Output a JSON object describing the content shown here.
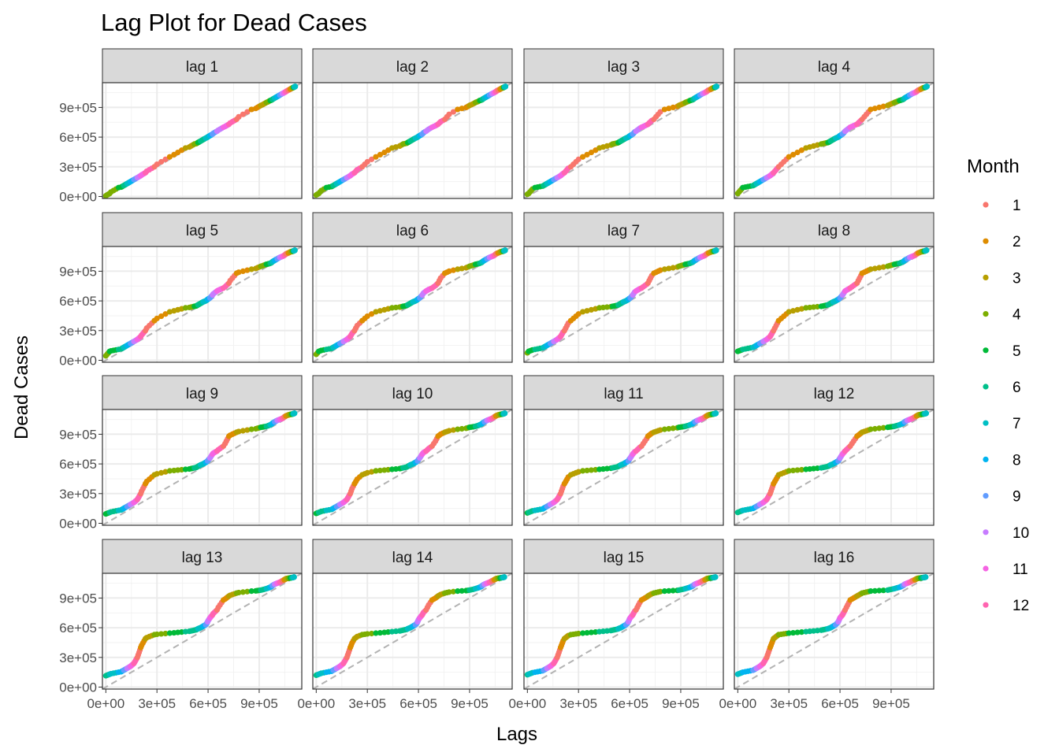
{
  "chart_data": {
    "type": "scatter",
    "title": "Lag Plot for Dead Cases",
    "xlabel": "Lags",
    "ylabel": "Dead Cases",
    "xlim": [
      -20000,
      1150000
    ],
    "ylim": [
      -20000,
      1150000
    ],
    "x_ticks": [
      0,
      300000,
      600000,
      900000
    ],
    "x_tick_labels": [
      "0e+00",
      "3e+05",
      "6e+05",
      "9e+05"
    ],
    "y_ticks": [
      0,
      300000,
      600000,
      900000
    ],
    "y_tick_labels": [
      "0e+00",
      "3e+05",
      "6e+05",
      "9e+05"
    ],
    "reference_line": "y = x (dashed grey)",
    "grid": true,
    "facets": [
      "lag 1",
      "lag 2",
      "lag 3",
      "lag 4",
      "lag 5",
      "lag 6",
      "lag 7",
      "lag 8",
      "lag 9",
      "lag 10",
      "lag 11",
      "lag 12",
      "lag 13",
      "lag 14",
      "lag 15",
      "lag 16"
    ],
    "legend": {
      "title": "Month",
      "position": "right",
      "items": [
        {
          "label": "1",
          "color": "#F8766D"
        },
        {
          "label": "2",
          "color": "#DE8C00"
        },
        {
          "label": "3",
          "color": "#B79F00"
        },
        {
          "label": "4",
          "color": "#7CAE00"
        },
        {
          "label": "5",
          "color": "#00BA38"
        },
        {
          "label": "6",
          "color": "#00C08B"
        },
        {
          "label": "7",
          "color": "#00BFC4"
        },
        {
          "label": "8",
          "color": "#00B4F0"
        },
        {
          "label": "9",
          "color": "#619CFF"
        },
        {
          "label": "10",
          "color": "#C77CFF"
        },
        {
          "label": "11",
          "color": "#F564E3"
        },
        {
          "label": "12",
          "color": "#FF64B0"
        }
      ]
    },
    "series": [
      {
        "month": 4,
        "values": [
          0,
          30000,
          90000
        ]
      },
      {
        "month": 5,
        "values": [
          90000,
          110000
        ]
      },
      {
        "month": 6,
        "values": [
          110000,
          130000
        ]
      },
      {
        "month": 7,
        "values": [
          130000,
          150000
        ]
      },
      {
        "month": 8,
        "values": [
          150000,
          170000
        ]
      },
      {
        "month": 9,
        "values": [
          170000,
          190000
        ]
      },
      {
        "month": 10,
        "values": [
          190000,
          210000
        ]
      },
      {
        "month": 11,
        "values": [
          210000,
          240000
        ]
      },
      {
        "month": 12,
        "values": [
          240000,
          300000
        ]
      },
      {
        "month": 1,
        "values": [
          300000,
          400000
        ]
      },
      {
        "month": 2,
        "values": [
          400000,
          490000
        ]
      },
      {
        "month": 3,
        "values": [
          490000,
          530000
        ]
      },
      {
        "month": 4,
        "values": [
          530000,
          545000
        ]
      },
      {
        "month": 5,
        "values": [
          545000,
          560000
        ]
      },
      {
        "month": 6,
        "values": [
          560000,
          575000,
          590000
        ]
      },
      {
        "month": 7,
        "values": [
          590000,
          600000,
          615000
        ]
      },
      {
        "month": 8,
        "values": [
          615000,
          630000
        ]
      },
      {
        "month": 9,
        "values": [
          630000,
          660000
        ]
      },
      {
        "month": 10,
        "values": [
          660000,
          700000
        ]
      },
      {
        "month": 11,
        "values": [
          700000,
          730000
        ]
      },
      {
        "month": 12,
        "values": [
          730000,
          780000
        ]
      },
      {
        "month": 1,
        "values": [
          780000,
          880000
        ]
      },
      {
        "month": 2,
        "values": [
          880000,
          920000
        ]
      },
      {
        "month": 3,
        "values": [
          920000,
          950000
        ]
      },
      {
        "month": 4,
        "values": [
          950000,
          970000
        ]
      },
      {
        "month": 5,
        "values": [
          970000,
          980000
        ]
      },
      {
        "month": 6,
        "values": [
          980000,
          995000
        ]
      },
      {
        "month": 7,
        "values": [
          995000,
          1010000
        ]
      },
      {
        "month": 8,
        "values": [
          1010000,
          1025000
        ]
      },
      {
        "month": 9,
        "values": [
          1025000,
          1040000
        ]
      },
      {
        "month": 10,
        "values": [
          1040000,
          1050000
        ]
      },
      {
        "month": 11,
        "values": [
          1050000,
          1060000
        ]
      },
      {
        "month": 12,
        "values": [
          1060000,
          1075000
        ]
      },
      {
        "month": 1,
        "values": [
          1075000,
          1085000
        ]
      },
      {
        "month": 2,
        "values": [
          1085000,
          1095000
        ]
      },
      {
        "month": 3,
        "values": [
          1095000,
          1100000
        ]
      },
      {
        "month": 4,
        "values": [
          1100000,
          1103000
        ]
      },
      {
        "month": 5,
        "values": [
          1103000,
          1106000
        ]
      },
      {
        "month": 6,
        "values": [
          1106000,
          1108000
        ]
      },
      {
        "month": 7,
        "values": [
          1108000,
          1110000,
          1112000
        ]
      }
    ]
  }
}
